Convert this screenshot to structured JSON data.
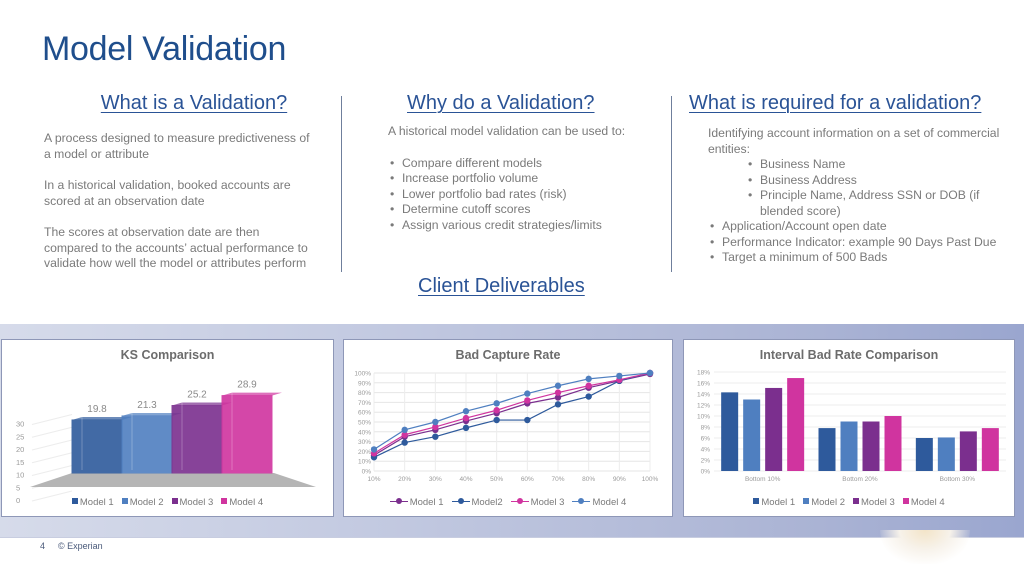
{
  "slide": {
    "title": "Model Validation",
    "page_number": "4",
    "copyright": "© Experian"
  },
  "columns": [
    {
      "heading": "What is a Validation?",
      "paragraphs": [
        "A process designed to measure predictiveness of a model or attribute",
        "In a historical validation, booked accounts are scored at an observation date",
        "The scores at observation date are then compared to the accounts’ actual performance to validate how well the model or attributes perform"
      ]
    },
    {
      "heading": "Why do a Validation?",
      "intro": "A historical model validation can be used to:",
      "bullets": [
        "Compare different models",
        "Increase portfolio volume",
        "Lower portfolio bad rates (risk)",
        "Determine cutoff scores",
        "Assign various credit strategies/limits"
      ]
    },
    {
      "heading": "What is required for a validation?",
      "intro": "Identifying account information on a set of commercial entities:",
      "sub_bullets": [
        "Business Name",
        "Business Address",
        "Principle Name, Address SSN or DOB (if blended score)"
      ],
      "bullets": [
        "Application/Account open date",
        "Performance Indicator: example 90 Days Past Due",
        "Target a minimum of 500 Bads"
      ]
    }
  ],
  "deliverables_heading": "Client Deliverables",
  "colors": {
    "title": "#1f4e8c",
    "model1": "#2e5a9c",
    "model2": "#4f7fc0",
    "model3": "#7b2f8e",
    "model4": "#d0349f"
  },
  "chart_data": [
    {
      "type": "bar",
      "title": "KS Comparison",
      "style": "3d",
      "categories": [
        "Model 1",
        "Model 2",
        "Model 3",
        "Model 4"
      ],
      "values": [
        19.8,
        21.3,
        25.2,
        28.9
      ],
      "data_labels": [
        "19.8",
        "21.3",
        "25.2",
        "28.9"
      ],
      "yticks": [
        "0",
        "5",
        "10",
        "15",
        "20",
        "25",
        "30"
      ],
      "ylim": [
        0,
        30
      ],
      "legend": [
        "Model 1",
        "Model 2",
        "Model 3",
        "Model 4"
      ],
      "legend_position": "bottom",
      "xlabel": "",
      "ylabel": ""
    },
    {
      "type": "line",
      "title": "Bad Capture Rate",
      "x": [
        "10%",
        "20%",
        "30%",
        "40%",
        "50%",
        "60%",
        "70%",
        "80%",
        "90%",
        "100%"
      ],
      "yticks": [
        "0%",
        "10%",
        "20%",
        "30%",
        "40%",
        "50%",
        "60%",
        "70%",
        "80%",
        "90%",
        "100%"
      ],
      "ylim": [
        0,
        100
      ],
      "grid": true,
      "series": [
        {
          "name": "Model 1",
          "values": [
            16,
            35,
            42,
            51,
            59,
            69,
            75,
            85,
            92,
            99
          ]
        },
        {
          "name": "Model2",
          "values": [
            14,
            29,
            35,
            44,
            52,
            52,
            68,
            76,
            92,
            100
          ]
        },
        {
          "name": "Model 3",
          "values": [
            18,
            37,
            45,
            54,
            62,
            72,
            80,
            87,
            93,
            100
          ]
        },
        {
          "name": "Model 4",
          "values": [
            22,
            42,
            50,
            61,
            69,
            79,
            87,
            94,
            97,
            100
          ]
        }
      ],
      "legend_position": "bottom",
      "xlabel": "",
      "ylabel": ""
    },
    {
      "type": "bar",
      "title": "Interval Bad Rate Comparison",
      "categories": [
        "Bottom 10%",
        "Bottom 20%",
        "Bottom 30%"
      ],
      "yticks": [
        "0%",
        "2%",
        "4%",
        "6%",
        "8%",
        "10%",
        "12%",
        "14%",
        "16%",
        "18%"
      ],
      "ylim": [
        0,
        18
      ],
      "grid": true,
      "series": [
        {
          "name": "Model 1",
          "values": [
            14.3,
            7.8,
            6.0
          ]
        },
        {
          "name": "Model 2",
          "values": [
            13.0,
            9.0,
            6.1
          ]
        },
        {
          "name": "Model 3",
          "values": [
            15.1,
            9.0,
            7.2
          ]
        },
        {
          "name": "Model 4",
          "values": [
            16.9,
            10.0,
            7.8
          ]
        }
      ],
      "legend_position": "bottom",
      "xlabel": "",
      "ylabel": ""
    }
  ]
}
